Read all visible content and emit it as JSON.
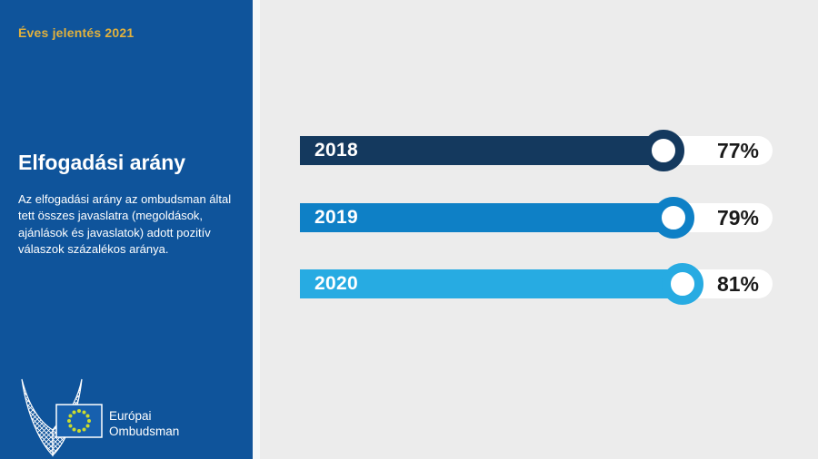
{
  "sidebar": {
    "report_label": "Éves jelentés 2021",
    "title": "Elfogadási arány",
    "description": "Az elfogadási arány az ombudsman által tett összes javaslatra (megoldások, ajánlások és javaslatok) adott pozitív válaszok százalékos aránya.",
    "logo": {
      "org_line1": "Európai",
      "org_line2": "Ombudsman"
    }
  },
  "chart_data": {
    "type": "bar",
    "orientation": "horizontal",
    "title": "Elfogadási arány",
    "categories": [
      "2018",
      "2019",
      "2020"
    ],
    "values": [
      77,
      79,
      81
    ],
    "value_labels": [
      "77%",
      "79%",
      "81%"
    ],
    "xlim": [
      0,
      100
    ],
    "grid": false,
    "legend": false,
    "bar_colors": [
      "#14395e",
      "#0e80c6",
      "#27abe2"
    ]
  },
  "colors": {
    "sidebar_bg": "#0f549b",
    "main_bg": "#ececec",
    "accent_gold": "#e2b13c",
    "track_white": "#ffffff",
    "value_text": "#1a1a1a",
    "flag_bg": "#1760ae",
    "flag_stars": "#c9db2e"
  }
}
